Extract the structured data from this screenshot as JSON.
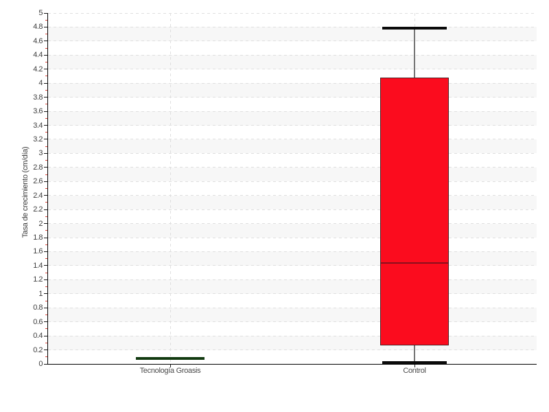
{
  "chart_data": {
    "type": "boxplot",
    "title": "",
    "xlabel": "",
    "ylabel": "Tasa de crecimiento (cm/día)",
    "categories": [
      "Tecnología Groasis",
      "Control"
    ],
    "ylim": [
      0,
      5
    ],
    "ytick_step": 0.2,
    "minor_tick_step": 0.1,
    "legend": "none",
    "grid": {
      "horizontal": "dashed every 0.2",
      "vertical": "dashed at each category center",
      "alternating_bands": true
    },
    "series": [
      {
        "name": "Tecnología Groasis",
        "min": 0.06,
        "q1": 0.06,
        "median": 0.075,
        "q3": 0.095,
        "max": 0.095,
        "fill": "#267326",
        "stroke": "#123a10",
        "median_color": "#123a10"
      },
      {
        "name": "Control",
        "min": 0.02,
        "q1": 0.26,
        "median": 1.44,
        "q3": 4.08,
        "max": 4.78,
        "fill": "#fb0c1e",
        "stroke": "#4a2023",
        "median_color": "#8b0f1c"
      }
    ],
    "colors": {
      "band": "#f7f7f7",
      "gridline": "#dfdfdf",
      "axis": "#000000",
      "major_tick": "#1a1a1a",
      "minor_tick": "#e0453a",
      "whisker_stem": "#757575",
      "whisker_cap": "#0a0a0a",
      "tick_label_text": "#3d3d3d",
      "category_label_text": "#4a4a4a"
    }
  }
}
